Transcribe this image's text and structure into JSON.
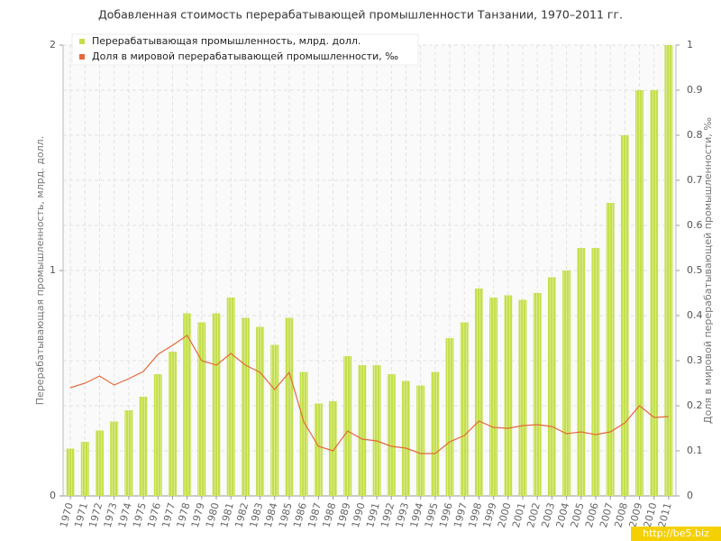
{
  "chart_data": {
    "type": "bar-line",
    "title": "Добавленная стоимость перерабатывающей промышленности Танзании, 1970–2011 гг.",
    "y_label": "Перерабатывающая промышленность, млрд. долл.",
    "y2_label": "Доля в мировой перерабатывающей промышленности, ‰",
    "categories": [
      "1970",
      "1971",
      "1972",
      "1973",
      "1974",
      "1975",
      "1976",
      "1977",
      "1978",
      "1979",
      "1980",
      "1981",
      "1982",
      "1983",
      "1984",
      "1985",
      "1986",
      "1987",
      "1988",
      "1989",
      "1990",
      "1991",
      "1992",
      "1993",
      "1994",
      "1995",
      "1996",
      "1997",
      "1998",
      "1999",
      "2000",
      "2001",
      "2002",
      "2003",
      "2004",
      "2005",
      "2006",
      "2007",
      "2008",
      "2009",
      "2010",
      "2011"
    ],
    "series": [
      {
        "name": "Перерабатывающая промышленность, млрд. долл.",
        "type": "bar",
        "color": "#c4df4c",
        "axis": "y",
        "values": [
          0.21,
          0.24,
          0.29,
          0.33,
          0.38,
          0.44,
          0.54,
          0.64,
          0.81,
          0.77,
          0.81,
          0.88,
          0.79,
          0.75,
          0.67,
          0.79,
          0.55,
          0.41,
          0.42,
          0.62,
          0.58,
          0.58,
          0.54,
          0.51,
          0.49,
          0.55,
          0.7,
          0.77,
          0.92,
          0.88,
          0.89,
          0.87,
          0.9,
          0.97,
          1.0,
          1.1,
          1.1,
          1.3,
          1.6,
          1.8,
          1.8,
          2.0
        ]
      },
      {
        "name": "Доля в мировой перерабатывающей промышленности, ‰",
        "type": "line",
        "color": "#e5683a",
        "axis": "y2",
        "values": [
          0.24,
          0.25,
          0.266,
          0.246,
          0.26,
          0.276,
          0.314,
          0.334,
          0.356,
          0.3,
          0.29,
          0.316,
          0.29,
          0.274,
          0.236,
          0.274,
          0.164,
          0.11,
          0.1,
          0.144,
          0.126,
          0.122,
          0.11,
          0.106,
          0.094,
          0.094,
          0.12,
          0.134,
          0.166,
          0.152,
          0.15,
          0.156,
          0.158,
          0.154,
          0.138,
          0.142,
          0.136,
          0.142,
          0.162,
          0.2,
          0.174,
          0.176
        ]
      }
    ],
    "ylim": [
      0,
      2
    ],
    "yticks": [
      0,
      1,
      2
    ],
    "y2lim": [
      0,
      1
    ],
    "y2ticks": [
      0,
      0.1,
      0.2,
      0.3,
      0.4,
      0.5,
      0.6,
      0.7,
      0.8,
      0.9,
      1
    ],
    "grid": true,
    "legend": "top-left",
    "watermark": "http://be5.biz"
  }
}
